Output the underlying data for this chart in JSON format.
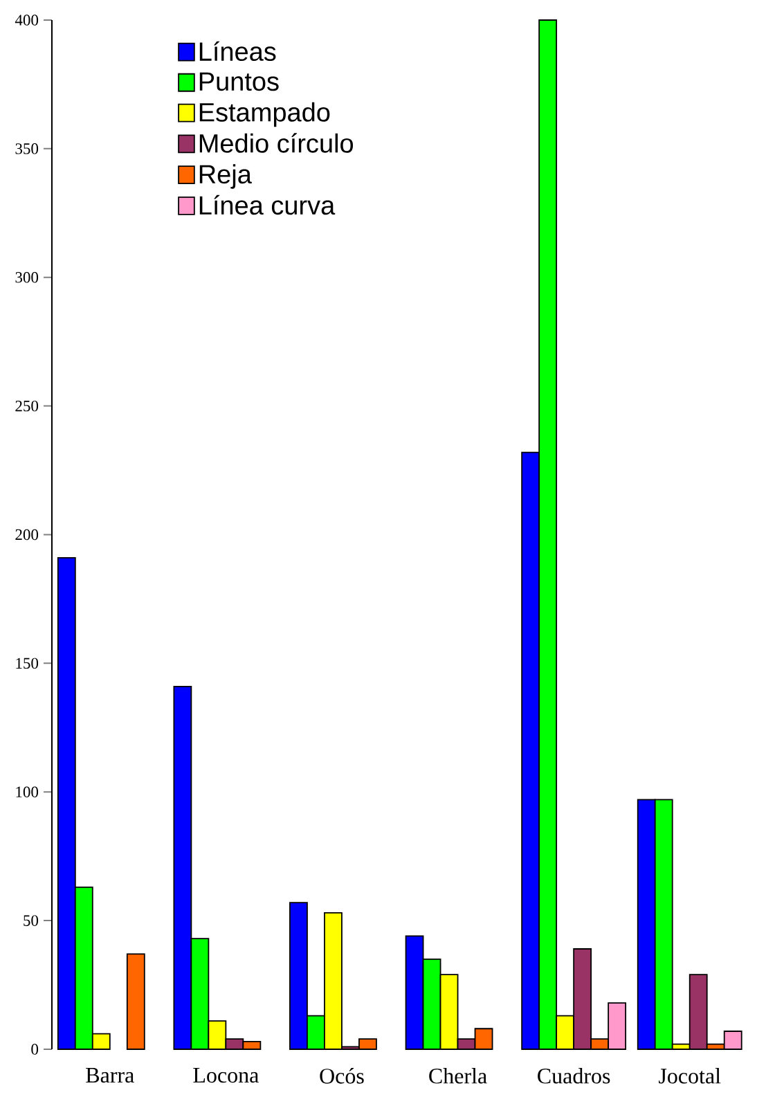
{
  "chart_data": {
    "type": "bar",
    "categories": [
      "Barra",
      "Locona",
      "Ocós",
      "Cherla",
      "Cuadros",
      "Jocotal"
    ],
    "series": [
      {
        "name": "Líneas",
        "color": "#0000ff",
        "values": [
          191,
          141,
          57,
          44,
          232,
          97
        ]
      },
      {
        "name": "Puntos",
        "color": "#00ff00",
        "values": [
          63,
          43,
          13,
          35,
          400,
          97
        ]
      },
      {
        "name": "Estampado",
        "color": "#ffff00",
        "values": [
          6,
          11,
          53,
          29,
          13,
          2
        ]
      },
      {
        "name": "Medio círculo",
        "color": "#993366",
        "values": [
          null,
          4,
          1,
          4,
          39,
          29
        ]
      },
      {
        "name": "Reja",
        "color": "#ff6600",
        "values": [
          37,
          3,
          4,
          8,
          4,
          2
        ]
      },
      {
        "name": "Línea curva",
        "color": "#ff99cc",
        "values": [
          null,
          null,
          null,
          null,
          18,
          7
        ]
      }
    ],
    "ylim": [
      0,
      400
    ],
    "yticks": [
      0,
      50,
      100,
      150,
      200,
      250,
      300,
      350,
      400
    ],
    "grid": false,
    "legend": "top left"
  }
}
